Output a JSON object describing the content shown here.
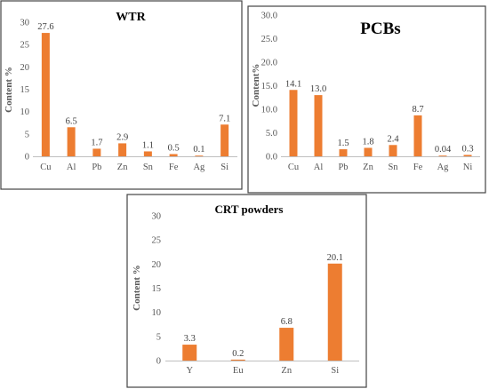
{
  "colors": {
    "bar": "#ED7D31",
    "axis": "#BFBFBF",
    "frame": "#444444"
  },
  "chart_data": [
    {
      "type": "bar",
      "title": "WTR",
      "ylabel": "Content %",
      "xlabel": "",
      "categories": [
        "Cu",
        "Al",
        "Pb",
        "Zn",
        "Sn",
        "Fe",
        "Ag",
        "Si"
      ],
      "values": [
        27.6,
        6.5,
        1.7,
        2.9,
        1.1,
        0.5,
        0.1,
        7.1
      ],
      "value_labels": [
        "27.6",
        "6.5",
        "1.7",
        "2.9",
        "1.1",
        "0.5",
        "0.1",
        "7.1"
      ],
      "ylim": [
        0,
        30
      ],
      "yticks": [
        "0",
        "5",
        "10",
        "15",
        "20",
        "25",
        "30"
      ],
      "grid": false,
      "legend": "none"
    },
    {
      "type": "bar",
      "title": "PCBs",
      "ylabel": "Content%",
      "xlabel": "",
      "categories": [
        "Cu",
        "Al",
        "Pb",
        "Zn",
        "Sn",
        "Fe",
        "Ag",
        "Ni"
      ],
      "values": [
        14.1,
        13.0,
        1.5,
        1.8,
        2.4,
        8.7,
        0.04,
        0.3
      ],
      "value_labels": [
        "14.1",
        "13.0",
        "1.5",
        "1.8",
        "2.4",
        "8.7",
        "0.04",
        "0.3"
      ],
      "ylim": [
        0,
        30
      ],
      "yticks": [
        "0.0",
        "5.0",
        "10.0",
        "15.0",
        "20.0",
        "25.0",
        "30.0"
      ],
      "grid": false,
      "legend": "none"
    },
    {
      "type": "bar",
      "title": "CRT powders",
      "ylabel": "Content %",
      "xlabel": "",
      "categories": [
        "Y",
        "Eu",
        "Zn",
        "Si"
      ],
      "values": [
        3.3,
        0.2,
        6.8,
        20.1
      ],
      "value_labels": [
        "3.3",
        "0.2",
        "6.8",
        "20.1"
      ],
      "ylim": [
        0,
        30
      ],
      "yticks": [
        "0",
        "5",
        "10",
        "15",
        "20",
        "25",
        "30"
      ],
      "grid": false,
      "legend": "none"
    }
  ]
}
